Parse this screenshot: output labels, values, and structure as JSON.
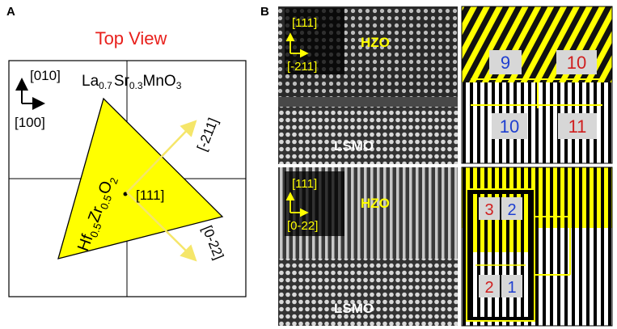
{
  "panel_a": {
    "label": "A",
    "title": "Top View",
    "substrate": {
      "main": "La",
      "sub1": "0.7",
      "mid": "Sr",
      "sub2": "0.3",
      "end": "MnO",
      "sub3": "3"
    },
    "film": {
      "p1": "Hf",
      "s1": "0.5",
      "p2": "Zr",
      "s2": "0.5",
      "p3": "O",
      "s3": "2"
    },
    "axis_010": "[010]",
    "axis_100": "[100]",
    "axis_111": "[111]",
    "dir_211": "[-211]",
    "dir_022": "[0-22]",
    "colors": {
      "title": "#e8201c",
      "triangle": "#ffff00",
      "arrow": "#f5e66a"
    }
  },
  "panel_b": {
    "label": "B",
    "top": {
      "axis_up": "[111]",
      "axis_right": "[-211]",
      "film": "HZO",
      "substrate": "LSMO"
    },
    "bottom": {
      "axis_up": "[111]",
      "axis_right": "[0-22]",
      "film": "HZO",
      "substrate": "LSMO"
    },
    "fringe_top": {
      "upper_left": "9",
      "upper_right": "10",
      "lower_left": "10",
      "lower_right": "11"
    },
    "fringe_bottom": {
      "upper_left": "3",
      "upper_right": "2",
      "lower_left": "2",
      "lower_right": "1"
    },
    "colors": {
      "yellow": "#ffff00",
      "blue": "#1f3fd0",
      "red": "#d01f1f"
    }
  }
}
